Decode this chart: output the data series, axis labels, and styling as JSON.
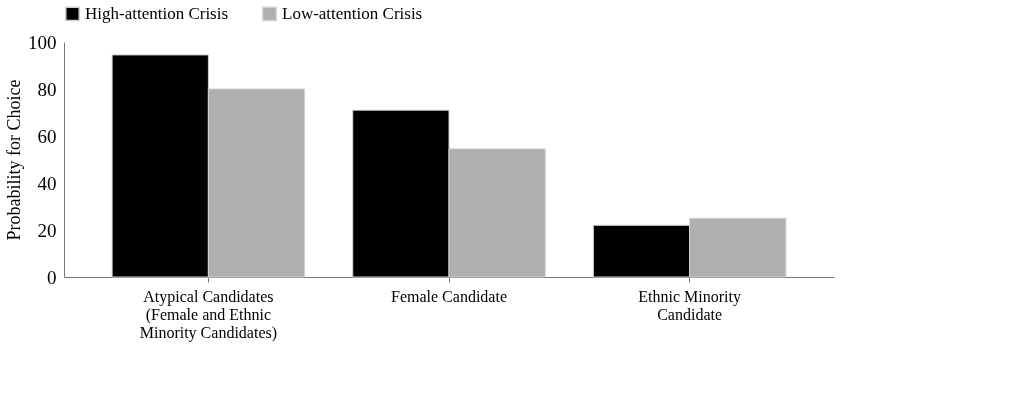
{
  "chart_data": {
    "type": "bar",
    "ylabel": "Probability for Choice",
    "categories": [
      "Atypical Candidates (Female and Ethnic Minority Candidates)",
      "Female Candidate",
      "Ethnic Minority Candidate"
    ],
    "series": [
      {
        "name": "High-attention Crisis",
        "color": "#000000",
        "values": [
          94.5,
          71,
          22
        ]
      },
      {
        "name": "Low-attention Crisis",
        "color": "#afafaf",
        "values": [
          80,
          54.5,
          25
        ]
      }
    ],
    "ylim": [
      0,
      100
    ],
    "yticks": [
      0,
      20,
      40,
      60,
      80,
      100
    ],
    "grid": false,
    "legend": "top"
  }
}
